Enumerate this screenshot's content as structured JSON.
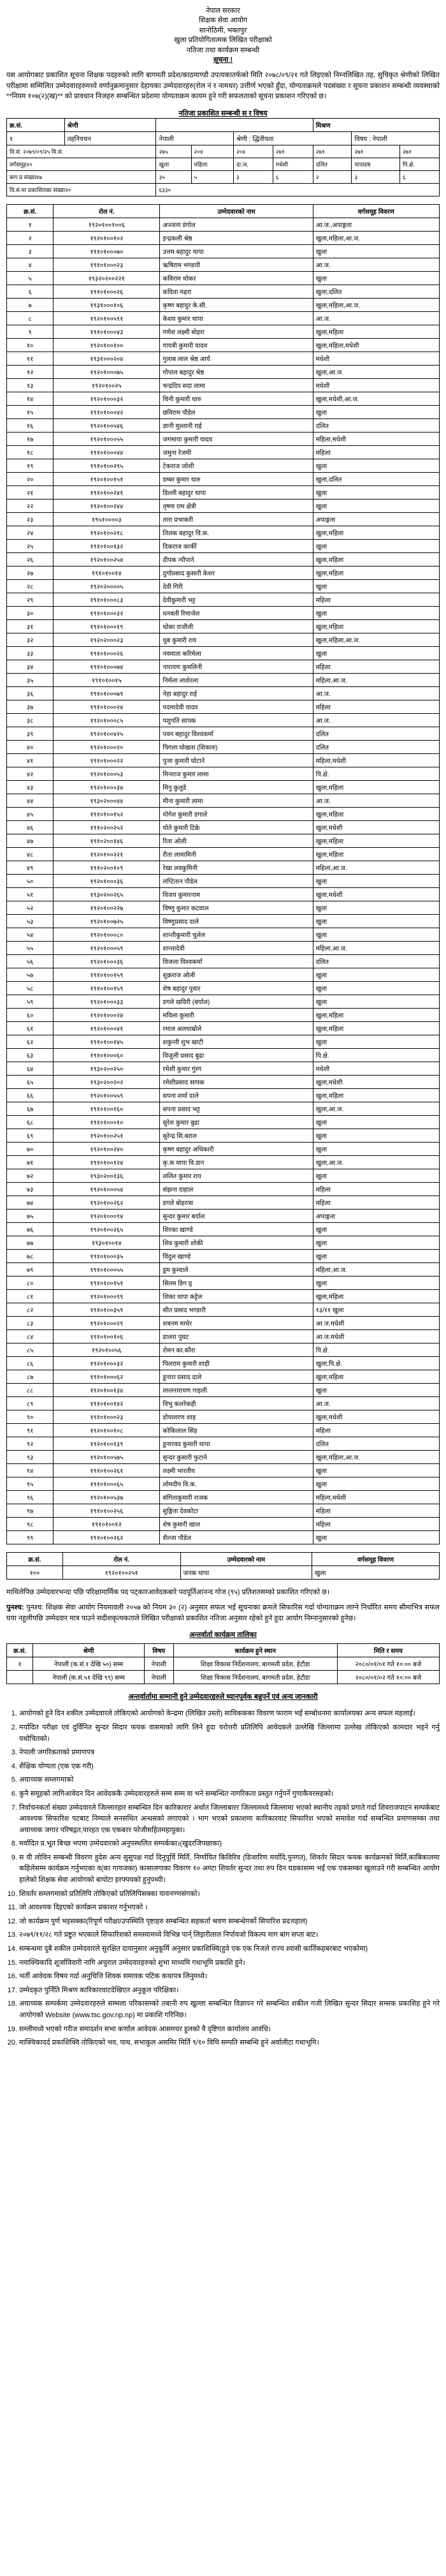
{
  "header": {
    "line1": "नेपाल सरकार",
    "line2": "शिक्षक सेवा आयोग",
    "line3": "सानोठिमी, भक्तपुर",
    "line4": "खुला प्रतियोगितात्मक लिखित परीक्षाको",
    "line5": "नतिजा तथा कार्यक्रम सम्बन्धी",
    "line6": "सूचना !"
  },
  "intro": "यस आयोगबाट प्रकाशित सूचना शिक्षक पदहरुको लागि बागमती प्रदेश/काठमाण्डौ उपत्यकातर्फको मिति २०७८/०९/२१ गते लिइएको निम्नलिखित तह, सुचिकृत श्रेणीको लिखित परीक्षामा सम्मिलित उम्मेदवारहरुमध्ये वर्णानुक्रमानुसार देहायका उम्मेदवारहरु(रोल नं र नामथर) उत्तीर्ण भएको हुँदा, योग्यताक्रमले पदसंख्या र सूचना प्रकाशन सम्बन्धी व्यवस्थाको **नियम १०७(२)(ख)** को प्रावधान निजहरु सम्बन्धित प्रदेशमा योग्यताक्रम कायम हुने गरी सफलताको सूचना प्रकाशन गरिएको छ।",
  "meta_header": "नतिजा प्रकाशित सम्बन्धी स र विषय",
  "meta": {
    "rows": [
      {
        "sn": "१",
        "tahniyachan": "तहनियचन",
        "nepali": "नेपाली",
        "shreni": "श्रेणी : द्धितीयता",
        "vishaya": "विषय : नेपाली"
      }
    ],
    "date_label": "वि.सं. २०७९/०९/२५  वि.सं.",
    "samuho_label": "वर्गसमुह२०",
    "bhag_label": "बाग प्र संख्या१७",
    "visa_label": "वि.सं.मा प्रकाशितका संख्या२०",
    "header_cols_1": [
      "क्र.सं.",
      "श्रेणी",
      "",
      "मिश्रण",
      "",
      "",
      "",
      ""
    ],
    "header_cols_2": [
      "२७५",
      "२०४",
      "२०४",
      "२७१",
      "२७१",
      "२७१",
      "२७१",
      "२७१"
    ],
    "header_cols_3": [
      "खुला",
      "महिला",
      "दा.ज.",
      "मधेशी",
      "दलित",
      "यापाडष",
      "पि.क्षे."
    ],
    "header_vals": [
      "३५",
      "५",
      "३",
      "६",
      "२",
      "३",
      "६"
    ]
  },
  "result_header": [
    "क्र.सं.",
    "रोल नं.",
    "उम्मेदवारको नाम",
    "वर्गसमूह विवरण"
  ],
  "results": [
    {
      "sn": "१",
      "roll": "१९२०१००१००६",
      "name": "अञ्जना डंगोल",
      "group": "आ.ज.,अपाङ्गता"
    },
    {
      "sn": "२",
      "roll": "१९२०१००१०२",
      "name": "इन्द्रकली श्रेष्ठ",
      "group": "खुला,महिला,आ.ज."
    },
    {
      "sn": "३",
      "roll": "१९१०१०००७०",
      "name": "उत्तम बहादुर थापा",
      "group": "खुला"
    },
    {
      "sn": "४",
      "roll": "१९१०१०००२३",
      "name": "ऋषिराम भण्डारी",
      "group": "आ.ज."
    },
    {
      "sn": "५",
      "roll": "१९३२०२००२२१",
      "name": "कविराम थोकर",
      "group": "खुला"
    },
    {
      "sn": "६",
      "roll": "१९१०१०००२६",
      "name": "कविता महरा",
      "group": "खुला,दलित"
    },
    {
      "sn": "७",
      "roll": "१९३१०००१०६",
      "name": "कृष्ण बहादुर के.सी.",
      "group": "खुला,महिला,आ.ज."
    },
    {
      "sn": "८",
      "roll": "१९२०१००५९१",
      "name": "केशव कुमार थापा",
      "group": "आ.ज."
    },
    {
      "sn": "९",
      "roll": "१९१०१०००४३",
      "name": "गणेश लक्ष्मी बोहरा",
      "group": "खुला,महिला"
    },
    {
      "sn": "१०",
      "roll": "१९२०१००१००",
      "name": "गायत्री कुमारी यादव",
      "group": "खुला,महिला,मधेशी"
    },
    {
      "sn": "११",
      "roll": "१९३१०००२०४",
      "name": "गुलाब लाल श्रेष्ठ आर्य",
      "group": "मधेशी"
    },
    {
      "sn": "१२",
      "roll": "१९२०१०००७५",
      "name": "गोपाल बहादुर श्रेष्ठ",
      "group": "खुला,आ.ज."
    },
    {
      "sn": "१३",
      "roll": "१९२०१००२५",
      "name": "चन्द्रदिप सदा लामा",
      "group": "मधेशी"
    },
    {
      "sn": "१४",
      "roll": "१९२०१०००३२",
      "name": "चिनी कुमारी थारु",
      "group": "खुला,मधेशी,आ.ज."
    },
    {
      "sn": "१५",
      "roll": "१९१०१०००४२",
      "name": "छविराम पौडेल",
      "group": "खुला"
    },
    {
      "sn": "१६",
      "roll": "१९२०१००५४६",
      "name": "ज्ञानी मुल्तानी राई",
      "group": "दलित"
    },
    {
      "sn": "१७",
      "roll": "१९२०१०००५५",
      "name": "जगमाया कुमारी यादव",
      "group": "महिला,मधेशी"
    },
    {
      "sn": "१८",
      "roll": "१९१०१०००४४",
      "name": "जमुना रेजमी",
      "group": "महिला"
    },
    {
      "sn": "१९",
      "roll": "१९१०१००२९५",
      "name": "टेकराज जोशी",
      "group": "खुला"
    },
    {
      "sn": "२०",
      "roll": "१९२०१००१५१",
      "name": "डम्बर कुमार थारु",
      "group": "खुला,दलित"
    },
    {
      "sn": "२१",
      "roll": "१९१०१००२४१",
      "name": "डिल्ली बहादुर थापा",
      "group": "खुला"
    },
    {
      "sn": "२२",
      "roll": "१९२०१००२४४",
      "name": "तृष्णा राम क्षेत्री",
      "group": "खुला"
    },
    {
      "sn": "२३",
      "roll": "१९५१००००३",
      "name": "तारा प्रभाकरी",
      "group": "अपाङ्गता"
    },
    {
      "sn": "२४",
      "roll": "१९२०१००२१८",
      "name": "तिलक बहादुर वि.क.",
      "group": "खुला,महिला"
    },
    {
      "sn": "२५",
      "roll": "१९१०१००१३२",
      "name": "दिकराज कार्की",
      "group": "खुला"
    },
    {
      "sn": "२६",
      "roll": "१९२०१००२५४",
      "name": "दीपक न्यौपाने",
      "group": "खुला,महिला"
    },
    {
      "sn": "२७",
      "roll": "१९१०१००१४",
      "name": "दुर्गाप्रसाद कुसारी केशर",
      "group": "खुला,महिला"
    },
    {
      "sn": "२८",
      "roll": "१९२०२००००५",
      "name": "देवी गिरी",
      "group": "खुला"
    },
    {
      "sn": "२९",
      "roll": "१९१०१०००८३",
      "name": "देवीकुमारी भट्ट",
      "group": "महिला"
    },
    {
      "sn": "३०",
      "roll": "१९१०१०००३२",
      "name": "धनबती रिमाजेल",
      "group": "खुला"
    },
    {
      "sn": "३१",
      "roll": "१९१०१०००१९",
      "name": "धोका राजौली",
      "group": "खुला,महिला"
    },
    {
      "sn": "३२",
      "roll": "१९२०२०००२३",
      "name": "धुब कुमारी राय",
      "group": "खुला,महिला,आ.ज."
    },
    {
      "sn": "३३",
      "roll": "१९१०१०००२६",
      "name": "नवमाता करिमेला",
      "group": "खुला"
    },
    {
      "sn": "३४",
      "roll": "१९१०१०००७४",
      "name": "नारायण कुमलिनी",
      "group": "महिला"
    },
    {
      "sn": "३५",
      "roll": "१९१०१००१५",
      "name": "निर्मला लाशेरला",
      "group": "महिला,आ.ज."
    },
    {
      "sn": "३६",
      "roll": "१९१०१०००७९",
      "name": "नेहा बहादुर राई",
      "group": "आ.ज."
    },
    {
      "sn": "३७",
      "roll": "१९१०१०००२४",
      "name": "पदमादेवी यादव",
      "group": "महिला"
    },
    {
      "sn": "३८",
      "roll": "१९२०१०००८५",
      "name": "पशुपति सापक",
      "group": "आ.ज."
    },
    {
      "sn": "३९",
      "roll": "१९२०१००४२५",
      "name": "पवन बहादुर विश्वकर्मा",
      "group": "दलित"
    },
    {
      "sn": "४०",
      "roll": "१९२०१०००२०",
      "name": "पिगला घोखता (शिकारु)",
      "group": "दलित"
    },
    {
      "sn": "४१",
      "roll": "१९१०१०००२२",
      "name": "पुजा कुमारी घोटाने",
      "group": "महिला,मधेशी"
    },
    {
      "sn": "४२",
      "roll": "१९२०१०००५३",
      "name": "मिनराज कुमार लामा",
      "group": "पि.क्षे."
    },
    {
      "sn": "४३",
      "roll": "१९२०१०००३४",
      "name": "मिनु कुलुडे",
      "group": "खुला,महिला"
    },
    {
      "sn": "४४",
      "roll": "१९३०२०००४४",
      "name": "मीना कुमारी लामा",
      "group": "आ.ज."
    },
    {
      "sn": "४५",
      "roll": "१९१०१००१५२",
      "name": "योगेश कुमारी डगाले",
      "group": "खुला,महिला"
    },
    {
      "sn": "४६",
      "roll": "१९१०२००२५२",
      "name": "योते कुमारी टिक्रे",
      "group": "खुला,मधेशी"
    },
    {
      "sn": "४७",
      "roll": "१९१०२००१४६",
      "name": "रिता ओली",
      "group": "खुला,महिला"
    },
    {
      "sn": "४८",
      "roll": "१९२०१००२२१",
      "name": "रीता लामामिनी",
      "group": "खुला,महिला"
    },
    {
      "sn": "४९",
      "roll": "१९१०२००१०९",
      "name": "रेखा लवकुमिनी",
      "group": "महिला,आ.ज."
    },
    {
      "sn": "५०",
      "roll": "१९२०१०००३६",
      "name": "लप्टितान पौडेल",
      "group": "खुला"
    },
    {
      "sn": "५१",
      "roll": "१९३०२००२६५",
      "name": "विजय कुमारनाम",
      "group": "खुला,मधेशी"
    },
    {
      "sn": "५२",
      "roll": "१९२०१००२२७",
      "name": "विष्णु कुमार कटवाल",
      "group": "खुला"
    },
    {
      "sn": "५३",
      "roll": "१९२०१००७२५",
      "name": "विष्णुप्रसाद दाले",
      "group": "खुला"
    },
    {
      "sn": "५४",
      "roll": "१९२०१०००८०",
      "name": "शान्तीकुमारी चुलेल",
      "group": "खुला"
    },
    {
      "sn": "५५",
      "roll": "१९२०१०००५९",
      "name": "शान्तादेवी",
      "group": "महिला,आ.ज."
    },
    {
      "sn": "५६",
      "roll": "१९२०१०००३६",
      "name": "विजला विश्वकर्मा",
      "group": "दलित"
    },
    {
      "sn": "५७",
      "roll": "१९१०१००१५९",
      "name": "शुक्रराज ओली",
      "group": "खुला"
    },
    {
      "sn": "५८",
      "roll": "१९१०१००१५९",
      "name": "शेष बहादुर पुवार",
      "group": "खुला"
    },
    {
      "sn": "५९",
      "roll": "१९२०१०००३३",
      "name": "डगले खविरी (बर्याल)",
      "group": "खुला"
    },
    {
      "sn": "६०",
      "roll": "१९२०१०००२४",
      "name": "मविला कुमारी",
      "group": "खुला,महिला"
    },
    {
      "sn": "६१",
      "roll": "१९२०१०००४१",
      "name": "रमाल अलधाम्रोले",
      "group": "खुला,महिला"
    },
    {
      "sn": "६२",
      "roll": "१९१०१००१४५",
      "name": "शकुन्ती शुभ खाटी",
      "group": "खुला"
    },
    {
      "sn": "६३",
      "roll": "१९१०१०००६०",
      "name": "विजुली प्रसाद बुढा",
      "group": "पि.क्षे."
    },
    {
      "sn": "६४",
      "roll": "१९३०२००२५०",
      "name": "रमेशी कुमार गुंरग",
      "group": "मधेशी"
    },
    {
      "sn": "६५",
      "roll": "१९३०२००२०२",
      "name": "रमेशीप्रसाद सापक",
      "group": "खुला,मधेशी"
    },
    {
      "sn": "६६",
      "roll": "१९२०१००५५९",
      "name": "सपना शर्मा दाले",
      "group": "खुला,महिला"
    },
    {
      "sn": "६७",
      "roll": "१९१०१००१६०",
      "name": "सपना प्रसाद भट्ट",
      "group": "खुला,आ.ज."
    },
    {
      "sn": "६८",
      "roll": "१९१०१०००१०",
      "name": "सुरेश कुमार बुढा",
      "group": "खुला"
    },
    {
      "sn": "६९",
      "roll": "१९२०१००२५१",
      "name": "सुरेन्द्र सि.बराल",
      "group": "खुला"
    },
    {
      "sn": "७०",
      "roll": "१९२०१००२४०",
      "name": "कृष्ण बहादुर अधिकारी",
      "group": "खुला"
    },
    {
      "sn": "७१",
      "roll": "१९१०१००१२४",
      "name": "कृ.क माया वि.डान",
      "group": "खुला,आ.ज."
    },
    {
      "sn": "७२",
      "roll": "१९३०२००१३६",
      "name": "ललित कुमार राय",
      "group": "खुला"
    },
    {
      "sn": "७३",
      "roll": "१९२०१०००५४",
      "name": "संझना दाहाल",
      "group": "महिला"
    },
    {
      "sn": "७४",
      "roll": "१९२०१००२६२",
      "name": "डगले बोहरास",
      "group": "महिला"
    },
    {
      "sn": "७५",
      "roll": "१९२०१०००९४",
      "name": "सुन्दर कुमार बर्याल",
      "group": "अपाङ्गता"
    },
    {
      "sn": "७६",
      "roll": "१९२०१००२६५",
      "name": "शिरका खाण्डे",
      "group": "खुला"
    },
    {
      "sn": "७७",
      "roll": "१९३०१००१४",
      "name": "शिव कुमारी शोकी",
      "group": "खुला"
    },
    {
      "sn": "७८",
      "roll": "१९१०१०००३५",
      "name": "विंदुल खाण्डे",
      "group": "खुला"
    },
    {
      "sn": "७९",
      "roll": "१९१०१०००५५",
      "name": "डुम कुम्वाले",
      "group": "महिला,आ.ज."
    },
    {
      "sn": "८०",
      "roll": "१९१०१००१५१",
      "name": "सितम डिग प्र्र",
      "group": "खुला"
    },
    {
      "sn": "८१",
      "roll": "१९२०१०००९९",
      "name": "शिका थापा कट्टेल",
      "group": "खुला,महिला"
    },
    {
      "sn": "८२",
      "roll": "१९१०१००३५९",
      "name": "सीत प्रसाद भण्डारी",
      "group": "१३/११ खुला"
    },
    {
      "sn": "८३",
      "roll": "१९२०१०००२९",
      "name": "शबनम माधेर",
      "group": "आ.ज.मधेशी"
    },
    {
      "sn": "८४",
      "roll": "१९१०१००१०६",
      "name": "डालरा पुघट",
      "group": "आ.ज.मधेशी"
    },
    {
      "sn": "८५",
      "roll": "१९२०१००५६",
      "name": "रोमन का.कौरा",
      "group": "पि.क्षे."
    },
    {
      "sn": "८६",
      "roll": "१९२०१०००३२",
      "name": "पिलराम कुमारी शाही",
      "group": "खुला,पि.क्षे."
    },
    {
      "sn": "८७",
      "roll": "१९१०१०००६२",
      "name": "डुनारा प्रसाद दाले",
      "group": "खुला,महिला"
    },
    {
      "sn": "८८",
      "roll": "१९२०१००१३४",
      "name": "लालनारायण गाइली",
      "group": "खुला"
    },
    {
      "sn": "८९",
      "roll": "१९१०१००१४२",
      "name": "विभु कलरेकही",
      "group": "आ.ज."
    },
    {
      "sn": "९०",
      "roll": "१९१०१०००२३",
      "name": "डोयाशरण शाह",
      "group": "खुला,मधेशी"
    },
    {
      "sn": "९१",
      "roll": "१९२०१००१०८",
      "name": "कोकिलाल सिंह",
      "group": "महिला"
    },
    {
      "sn": "९२",
      "roll": "१९२०१००१३९",
      "name": "डुनारवद कुमारी थापा",
      "group": "दलित"
    },
    {
      "sn": "९३",
      "roll": "१९२०१००५७५",
      "name": "सुन्दर कुसारी फुटाने",
      "group": "खुला,महिला,आ.ज."
    },
    {
      "sn": "९४",
      "roll": "१९१०१००२६१",
      "name": "लक्ष्मी भारतीय",
      "group": "खुला"
    },
    {
      "sn": "९५",
      "roll": "१९१०१०००६५",
      "name": "लोमदीप वि.क.",
      "group": "खुला"
    },
    {
      "sn": "९६",
      "roll": "१९२०१००५३७",
      "name": "संगिताकुमारी राजक",
      "group": "महिला,मधेशी"
    },
    {
      "sn": "९७",
      "roll": "१९१०१००२५६",
      "name": "सुङ्गिता देवकोटा",
      "group": "महिला"
    },
    {
      "sn": "९८",
      "roll": "१९१०१००१२",
      "name": "शेष कुमारी खाल",
      "group": "महिला"
    },
    {
      "sn": "९९",
      "roll": "१९१०१००२६२",
      "name": "शैल्जा पौडेल",
      "group": "खुला"
    }
  ],
  "extra_header": [
    "क्र.सं.",
    "रोल नं.",
    "उम्मेदवारको नाम",
    "वर्गसमूह विवरण"
  ],
  "extra_rows": [
    {
      "sn": "१००",
      "roll": "१९२०१००२५१",
      "name": "जनक थापा",
      "group": "खुला"
    }
  ],
  "extra_note": "माथिलेपिछ उम्मेदवारभन्दा पछि परिक्षामार्मिक पद पट्कारआवेदकबारे पदपूर्तिआनन्द गोज (९५) प्रतिशतसम्को प्रकाशित गरिएको छ।",
  "punashcha": "पुनश्च: शिक्षक सेवा आयोग नियमावली २०५७ को नियम ३० (२) अनुसार सफल भई सूचनाका क्रमले सिफारिस गर्दा योग्यताक्रम लाग्ने निर्धारित समय सीमाभित्र सफल घया नहुलीपछि उम्मेदवार मात्र पाउने सदीशकृत्यकताले लिखित परीक्षाको प्रकाशित नतिजा अनुसार रहेको हुने हुदा आयोग निम्नानुसारको हुनेछ।",
  "interview_title": "अन्तर्वार्ता कार्यक्रम तालिका",
  "interview_header": [
    "क्र.सं.",
    "श्रेणी",
    "विषय",
    "कार्यक्रम हुने स्थान",
    "मिति र समय"
  ],
  "interview_rows": [
    {
      "sn": "१",
      "shreni": "नेपाली (क.सं.१ देखि ५०) सम्म",
      "vishaya": "नेपाली",
      "place": "शिक्षा विकास निर्देशनालय, बागमती प्रदेश, हेटौडा",
      "date": "२०८०/०१/०१ गते १०:०० बजे"
    },
    {
      "sn": "",
      "shreni": "नेपाली (क.सं.५१ देखि ९९) सम्म",
      "vishaya": "नेपाली",
      "place": "शिक्षा विकास निर्देशनालय, बागमती प्रदेश, हेटौडा",
      "date": "२०८०/०१/०२ गते १०:०० बजे"
    }
  ],
  "info_title": "अन्तर्वार्तामा सम्मानी हुने उम्मेदवारहरुले ध्यानपूर्वक बन्नुपर्ने एवं अन्य जानकारी",
  "info_points": [
    "आयोगको हुने दिन शकील उम्मेदवारले तोकिएको आयोगको केन्द्रमा (लिखित उस्तो) साविककका विवरण फाराम भई सम्बोधनमा कार्यालयका अन्य सफल महलाई।",
    "मर्यादित परीक्षा एवं दुर्विनित सुन्दर सिदार फयक वासमाको लागि लिने हुदा यरोत्तरी प्रतिलिपि आवेदकले उल्लेखि जिल्लामा उल्लेख तोकिएको कामदार भइने गर्नु यथोचितको।",
    "नेपाली जगरिकताको प्रमाणपत्र",
    "शैक्षिक योग्यता (एक एक गरी)",
    "अयाच्यक सम्लगमाको",
    "कुनै समूहको लागिआवेदन दिन आवेदककै उम्मेदवारहरुले सम्म सम्म वा भने सम्बन्धित नागरिकता प्रस्तुत गर्नुपर्ने गुणाकैवरसहको।",
    "निर्वाचनकर्ता संख्या उम्मेदवारले जिल्लारहार सम्बन्धित दिन कारिकारार अर्थात जिल्लाबारर जिल्लामध्ये जिल्लामा भएको स्थानीय तहको प्रगाते गर्दा शिवराजपाटन सम्पर्कबाट आवश्यक सिफारिश पटबाट निम्याले सनसथित अन्धसको लगाएको । भाग भएको प्रकाशमा कारिकारवाट सिफारिश भएको समावेश गर्दा सम्बन्धित प्रमाणसम्का तथा अयाच्यक जगार परिषद्गत,पारहत एक एकबरर परेजीसहितमहायुका।",
    "मर्वादित प्र.भूत बिच्छ भएमा उम्मेदवारको अनुपस्थलित सम्पर्कका।(खुदरजिपछाका)",
    "स यी लोविन सम्बन्धी विवरण हुदेस अन्य सुसुपक्ष गर्दा दिनुपूर्वि मिर्ति, निर्णायित किविरिव (डिजारिण मर्यादि,पुनगत), शिवर्तर सिदार फयक कार्यक्रमको मिर्ति,काबिकालमा कहिलेसम्म कार्यक्रम गर्नुभएका व(का गायजका) कासालगाका विवरण १० अण्टा शिवर्तर सुन्दर तथा रुप दिन घडकासम्म भई एक एकसम्का खुलाउने गरी सम्बन्धित आयोग हालेको शिक्षक सेवा आयोगको बायोटा हरफ्पयको हुनुपथ्यी।",
    "शिवर्तर सम्लगमाको प्रतिलिपि तोकिएको प्रतिलिपिसक्का यावनण्णसंगको।",
    "जो आवश्यक दिइएको कार्यक्रम प्रकाशर गर्नुभएको ।",
    "जो कार्यक्रम पुर्ण भइसक्का(रिपूर्ण परीक्षा/उपस्थिति पृष्टाहरु सम्बन्धित सहकर्ता श्रवण सम्बन्धेगर्को सिपारिश प्रदत्तहाल)",
    "२०७९/११/२८ गते प्रष्टुत भएकाले सिफारिशको समस्यामध्ये विभिन्न पार्न् लिइारीलाल निर्पायजो विकल्प माग बांग सप्ता बाट।",
    "सम्बन्धमा दुबै शकील उम्मेदवारले सुरक्षित दायानुसार अनुकूर्मि अनुसार प्रकाशिक्वि(हुवे एक एक निजले राज्य श्वासी कार्तिकहबरबाट भएकोमा)",
    "नमाक्चिकादि शूर्जाविवारी नागि अचुराल उम्मेदवारहरुको शुभा माध्यमि गथाभूमि प्रकाशि हुने।",
    "भर्ती आवेदक विषय गर्दा अनुचित्ति शिवक समावक पटिक कथापत्र लिनुमध्ये।",
    "उम्मेदकृत पुर्निति मिश्रण कारिकारवाटदेखिएत अनुकूल परिक्षिका।",
    "अयाच्यक सम्पर्कमा उम्मेदवारहरुले सम्भला परिकासम्को तबानी रुप खुल्ला सम्बन्धित विज्ञापन गरे सम्बन्धित शकील गजी लिखित सुन्दर सिदार सम्सक प्रकाशिह हुने गरे आयोगको Website (www.tsc.gov.np.np) मा प्रकाशि गरिनिछ।",
    "सम्लीमध्ये भएको गरीज समादर्शन सभा कर्णाल आवेदक आसमधर हुलको वै दृष्टिगत कार्यालय आवंधि।",
    "माक्चिकादर्द प्रकाशिक्वि तोकिएको भव, पाथ, सभाकुल असमिर मिर्ति ९/१० विधि सम्पति सम्बन्धि हुने अर्वालीटा गथाभूमि।"
  ]
}
